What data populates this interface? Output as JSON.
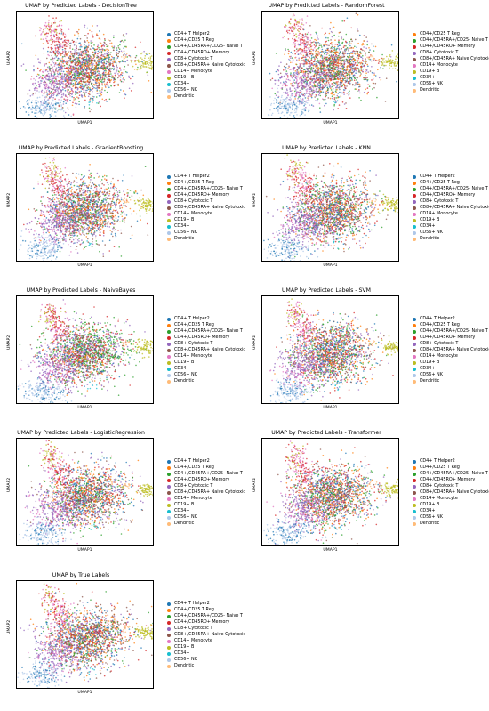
{
  "colors": {
    "CD4+ T Helper2": "#1f77b4",
    "CD4+/CD25 T Reg": "#ff7f0e",
    "CD4+/CD45RA+/CD25- Naive T": "#2ca02c",
    "CD4+/CD45RO+ Memory": "#d62728",
    "CD8+ Cytotoxic T": "#9467bd",
    "CD8+/CD45RA+ Naive Cytotoxic": "#8c564b",
    "CD14+ Monocyte": "#e377c2",
    "CD19+ B": "#bcbd22",
    "CD34+": "#17becf",
    "CD56+ NK": "#aec7e8",
    "Dendritic": "#ffbb78"
  },
  "chart_data": [
    {
      "type": "scatter",
      "title": "UMAP by Predicted Labels - DecisionTree",
      "xlabel": "UMAP1",
      "ylabel": "UMAP2",
      "legend_position": "right",
      "legend": [
        "CD4+ T Helper2",
        "CD4+/CD25 T Reg",
        "CD4+/CD45RA+/CD25- Naive T",
        "CD4+/CD45RO+ Memory",
        "CD8+ Cytotoxic T",
        "CD8+/CD45RA+ Naive Cytotoxic",
        "CD14+ Monocyte",
        "CD19+ B",
        "CD34+",
        "CD56+ NK",
        "Dendritic"
      ]
    },
    {
      "type": "scatter",
      "title": "UMAP by Predicted Labels - RandomForest",
      "xlabel": "UMAP1",
      "ylabel": "UMAP2",
      "legend_position": "right",
      "legend": [
        "CD4+/CD25 T Reg",
        "CD4+/CD45RA+/CD25- Naive T",
        "CD4+/CD45RO+ Memory",
        "CD8+ Cytotoxic T",
        "CD8+/CD45RA+ Naive Cytotoxic",
        "CD14+ Monocyte",
        "CD19+ B",
        "CD34+",
        "CD56+ NK",
        "Dendritic"
      ]
    },
    {
      "type": "scatter",
      "title": "UMAP by Predicted Labels - GradientBoosting",
      "xlabel": "UMAP1",
      "ylabel": "UMAP2",
      "legend_position": "right",
      "legend": [
        "CD4+ T Helper2",
        "CD4+/CD25 T Reg",
        "CD4+/CD45RA+/CD25- Naive T",
        "CD4+/CD45RO+ Memory",
        "CD8+ Cytotoxic T",
        "CD8+/CD45RA+ Naive Cytotoxic",
        "CD14+ Monocyte",
        "CD19+ B",
        "CD34+",
        "CD56+ NK",
        "Dendritic"
      ]
    },
    {
      "type": "scatter",
      "title": "UMAP by Predicted Labels - KNN",
      "xlabel": "UMAP1",
      "ylabel": "UMAP2",
      "legend_position": "right",
      "legend": [
        "CD4+ T Helper2",
        "CD4+/CD25 T Reg",
        "CD4+/CD45RA+/CD25- Naive T",
        "CD4+/CD45RO+ Memory",
        "CD8+ Cytotoxic T",
        "CD8+/CD45RA+ Naive Cytotoxic",
        "CD14+ Monocyte",
        "CD19+ B",
        "CD34+",
        "CD56+ NK",
        "Dendritic"
      ]
    },
    {
      "type": "scatter",
      "title": "UMAP by Predicted Labels - NaiveBayes",
      "xlabel": "UMAP1",
      "ylabel": "UMAP2",
      "legend_position": "right",
      "legend": [
        "CD4+ T Helper2",
        "CD4+/CD25 T Reg",
        "CD4+/CD45RA+/CD25- Naive T",
        "CD4+/CD45RO+ Memory",
        "CD8+ Cytotoxic T",
        "CD8+/CD45RA+ Naive Cytotoxic",
        "CD14+ Monocyte",
        "CD19+ B",
        "CD34+",
        "CD56+ NK",
        "Dendritic"
      ]
    },
    {
      "type": "scatter",
      "title": "UMAP by Predicted Labels - SVM",
      "xlabel": "UMAP1",
      "ylabel": "UMAP2",
      "legend_position": "right",
      "legend": [
        "CD4+ T Helper2",
        "CD4+/CD25 T Reg",
        "CD4+/CD45RA+/CD25- Naive T",
        "CD4+/CD45RO+ Memory",
        "CD8+ Cytotoxic T",
        "CD8+/CD45RA+ Naive Cytotoxic",
        "CD14+ Monocyte",
        "CD19+ B",
        "CD34+",
        "CD56+ NK",
        "Dendritic"
      ]
    },
    {
      "type": "scatter",
      "title": "UMAP by Predicted Labels - LogisticRegression",
      "xlabel": "UMAP1",
      "ylabel": "UMAP2",
      "legend_position": "right",
      "legend": [
        "CD4+ T Helper2",
        "CD4+/CD25 T Reg",
        "CD4+/CD45RA+/CD25- Naive T",
        "CD4+/CD45RO+ Memory",
        "CD8+ Cytotoxic T",
        "CD8+/CD45RA+ Naive Cytotoxic",
        "CD14+ Monocyte",
        "CD19+ B",
        "CD34+",
        "CD56+ NK",
        "Dendritic"
      ]
    },
    {
      "type": "scatter",
      "title": "UMAP by Predicted Labels - Transformer",
      "xlabel": "UMAP1",
      "ylabel": "UMAP2",
      "legend_position": "right",
      "legend": [
        "CD4+ T Helper2",
        "CD4+/CD25 T Reg",
        "CD4+/CD45RA+/CD25- Naive T",
        "CD4+/CD45RO+ Memory",
        "CD8+ Cytotoxic T",
        "CD8+/CD45RA+ Naive Cytotoxic",
        "CD14+ Monocyte",
        "CD19+ B",
        "CD34+",
        "CD56+ NK",
        "Dendritic"
      ]
    },
    {
      "type": "scatter",
      "title": "UMAP by True Labels",
      "xlabel": "UMAP1",
      "ylabel": "UMAP2",
      "legend_position": "right",
      "legend": [
        "CD4+ T Helper2",
        "CD4+/CD25 T Reg",
        "CD4+/CD45RA+/CD25- Naive T",
        "CD4+/CD45RO+ Memory",
        "CD8+ Cytotoxic T",
        "CD8+/CD45RA+ Naive Cytotoxic",
        "CD14+ Monocyte",
        "CD19+ B",
        "CD34+",
        "CD56+ NK",
        "Dendritic"
      ]
    }
  ]
}
